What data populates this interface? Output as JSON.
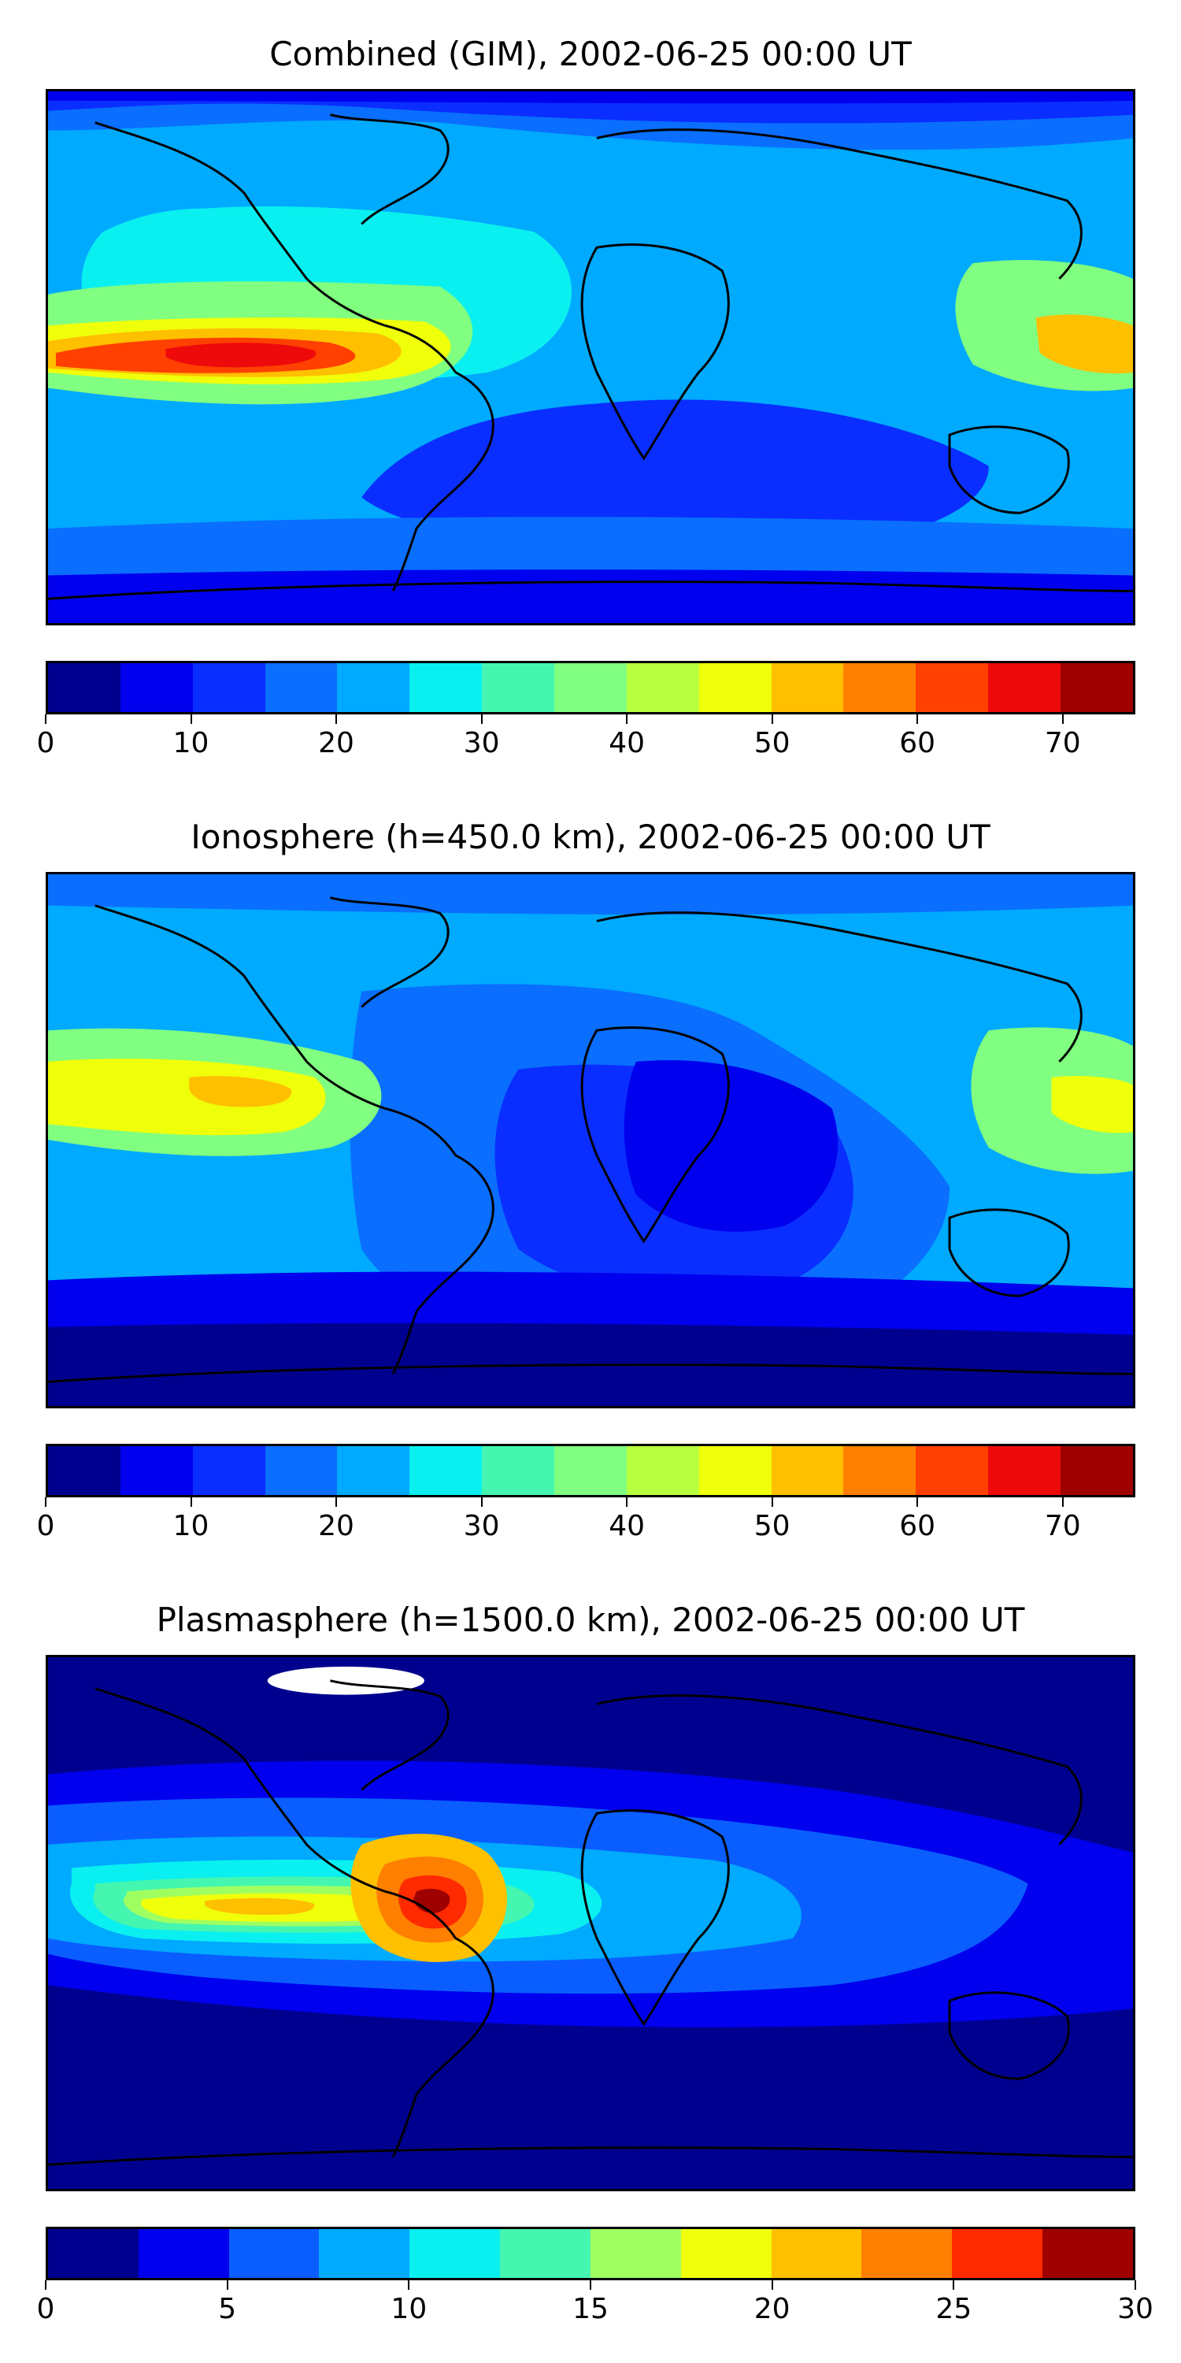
{
  "panels": [
    {
      "title": "Combined (GIM), 2002-06-25 00:00 UT",
      "ticks": [
        "0",
        "10",
        "20",
        "30",
        "40",
        "50",
        "60",
        "70"
      ],
      "tick_values": [
        0,
        10,
        20,
        30,
        40,
        50,
        60,
        70
      ],
      "range": [
        0,
        75
      ],
      "colors": [
        "#00008f",
        "#0000ee",
        "#0a2eff",
        "#0a6eff",
        "#00aaff",
        "#0af0f0",
        "#44f6b0",
        "#80ff80",
        "#b8ff40",
        "#f0ff0a",
        "#ffc000",
        "#ff7f00",
        "#ff4000",
        "#ee0a0a",
        "#9f0000"
      ],
      "background": "#00aaff"
    },
    {
      "title": "Ionosphere  (h=450.0 km), 2002-06-25 00:00 UT",
      "ticks": [
        "0",
        "10",
        "20",
        "30",
        "40",
        "50",
        "60",
        "70"
      ],
      "tick_values": [
        0,
        10,
        20,
        30,
        40,
        50,
        60,
        70
      ],
      "range": [
        0,
        75
      ],
      "colors": [
        "#00008f",
        "#0000ee",
        "#0a2eff",
        "#0a6eff",
        "#00aaff",
        "#0af0f0",
        "#44f6b0",
        "#80ff80",
        "#b8ff40",
        "#f0ff0a",
        "#ffc000",
        "#ff7f00",
        "#ff4000",
        "#ee0a0a",
        "#9f0000"
      ],
      "background": "#0a6eff"
    },
    {
      "title": "Plasmasphere (h=1500.0 km), 2002-06-25 00:00 UT",
      "ticks": [
        "0",
        "5",
        "10",
        "15",
        "20",
        "25",
        "30"
      ],
      "tick_values": [
        0,
        5,
        10,
        15,
        20,
        25,
        30
      ],
      "range": [
        0,
        30
      ],
      "colors": [
        "#00008f",
        "#0000ee",
        "#0a5eff",
        "#00aaff",
        "#0af0f0",
        "#44f6b0",
        "#a0ff60",
        "#f0ff0a",
        "#ffc000",
        "#ff7f00",
        "#ff2a00",
        "#9f0000"
      ],
      "background": "#00008f"
    }
  ]
}
